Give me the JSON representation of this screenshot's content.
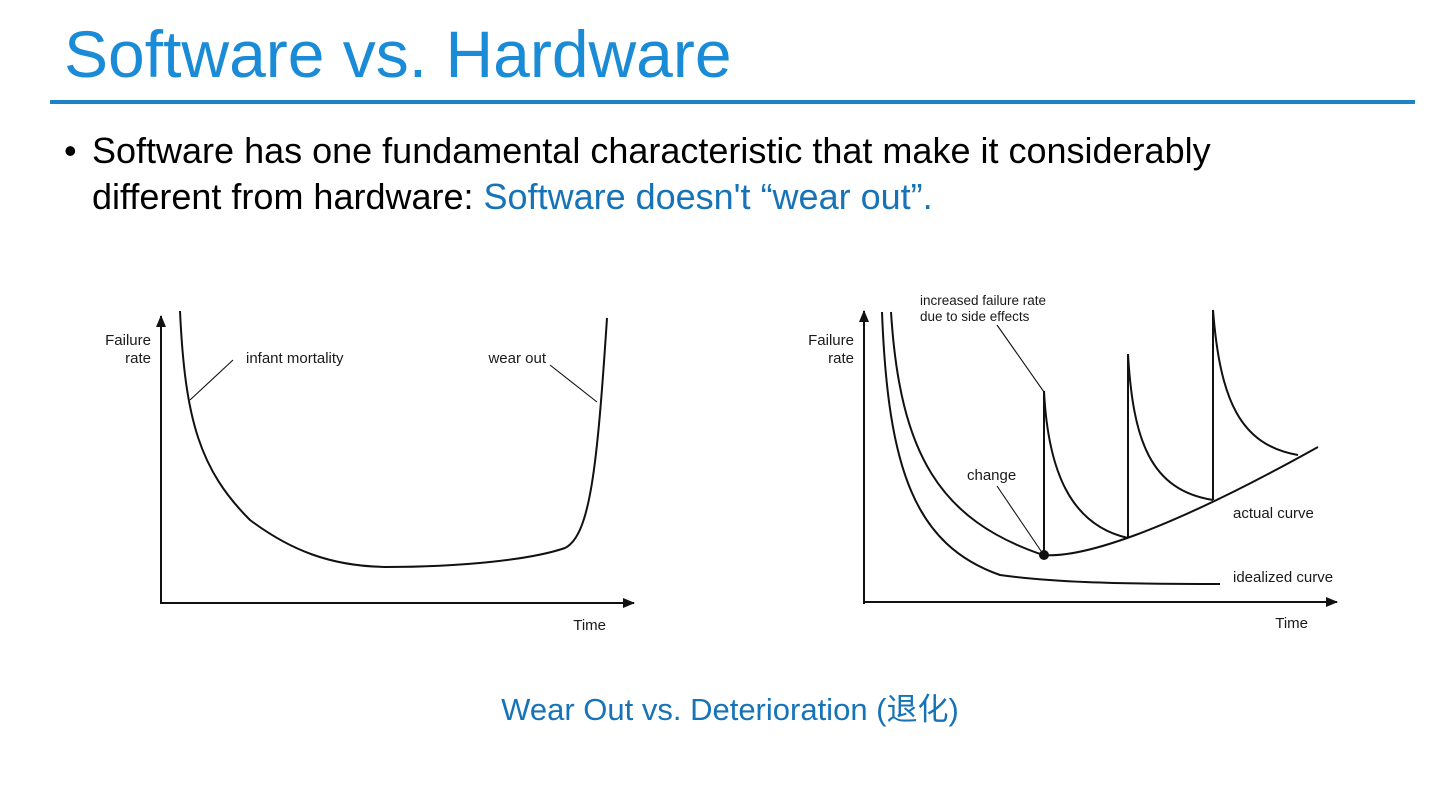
{
  "slide": {
    "title": "Software vs. Hardware",
    "bullet": {
      "line1": "Software has one fundamental characteristic that make it considerably",
      "line2_plain": "different from hardware: ",
      "line2_accent": "Software doesn't  “wear out”.",
      "accent_color": "#1773b8"
    },
    "caption": "Wear Out vs. Deterioration (退化)"
  },
  "hardware_curve": {
    "ylabel_line1": "Failure",
    "ylabel_line2": "rate",
    "xlabel": "Time",
    "annotation_left": "infant mortality",
    "annotation_right": "wear out"
  },
  "software_curve": {
    "ylabel_line1": "Failure",
    "ylabel_line2": "rate",
    "xlabel": "Time",
    "annotation_top_line1": "increased failure rate",
    "annotation_top_line2": "due to side effects",
    "annotation_change": "change",
    "label_actual": "actual curve",
    "label_idealized": "idealized curve"
  }
}
